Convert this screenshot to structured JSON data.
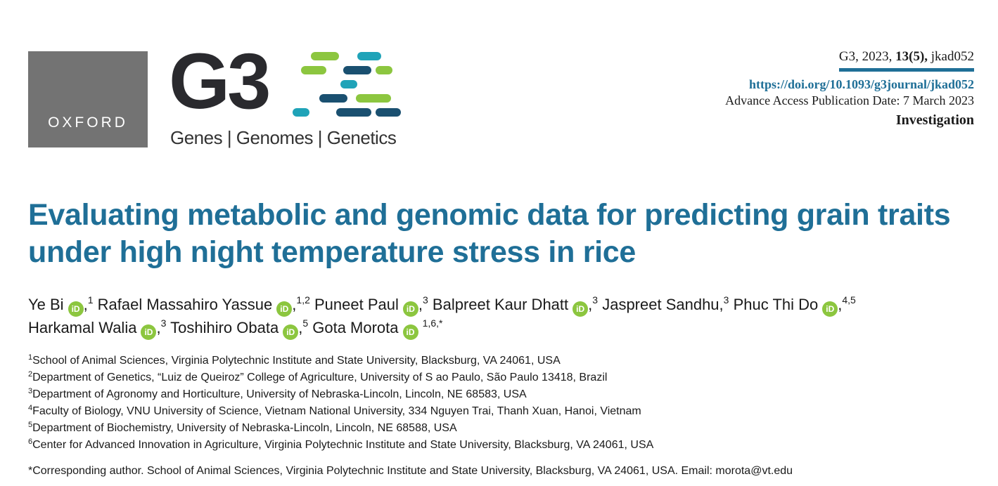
{
  "header": {
    "publisher": "OXFORD",
    "journal_mark": "G3",
    "journal_tagline": "Genes | Genomes | Genetics",
    "citation_prefix": "G3, 2023, ",
    "citation_volume": "13(5),",
    "citation_suffix": " jkad052",
    "doi": "https://doi.org/10.1093/g3journal/jkad052",
    "advance_access": "Advance Access Publication Date: 7 March 2023",
    "article_type": "Investigation"
  },
  "colors": {
    "title": "#1f6f97",
    "orcid": "#8cc63f",
    "bar_green": "#8cc63f",
    "bar_teal": "#1fa3b8",
    "bar_navy": "#1a5070",
    "oxford_box": "#737373"
  },
  "title": "Evaluating metabolic and genomic data for predicting grain traits under high night temperature stress in rice",
  "authors": [
    {
      "name": "Ye Bi",
      "orcid": true,
      "affil": "1"
    },
    {
      "name": "Rafael Massahiro Yassue",
      "orcid": true,
      "affil": "1,2"
    },
    {
      "name": "Puneet Paul",
      "orcid": true,
      "affil": "3"
    },
    {
      "name": "Balpreet Kaur Dhatt",
      "orcid": true,
      "affil": "3"
    },
    {
      "name": "Jaspreet Sandhu,",
      "orcid": false,
      "affil": "3"
    },
    {
      "name": "Phuc Thi Do",
      "orcid": true,
      "affil": "4,5"
    },
    {
      "name": "Harkamal Walia",
      "orcid": true,
      "affil": "3"
    },
    {
      "name": "Toshihiro Obata",
      "orcid": true,
      "affil": "5"
    },
    {
      "name": "Gota Morota",
      "orcid": true,
      "affil": "1,6,*"
    }
  ],
  "orcid_label": "iD",
  "affiliations": [
    {
      "num": "1",
      "text": "School of Animal Sciences, Virginia Polytechnic Institute and State University, Blacksburg, VA 24061, USA"
    },
    {
      "num": "2",
      "text": "Department of Genetics, “Luiz de Queiroz” College of Agriculture, University of S ao Paulo, São Paulo 13418, Brazil"
    },
    {
      "num": "3",
      "text": "Department of Agronomy and Horticulture, University of Nebraska-Lincoln, Lincoln, NE 68583, USA"
    },
    {
      "num": "4",
      "text": "Faculty of Biology, VNU University of Science, Vietnam National University, 334 Nguyen Trai, Thanh Xuan, Hanoi, Vietnam"
    },
    {
      "num": "5",
      "text": "Department of Biochemistry, University of Nebraska-Lincoln, Lincoln, NE 68588, USA"
    },
    {
      "num": "6",
      "text": "Center for Advanced Innovation in Agriculture, Virginia Polytechnic Institute and State University, Blacksburg, VA 24061, USA"
    }
  ],
  "corresponding": "*Corresponding author. School of Animal Sciences, Virginia Polytechnic Institute and State University, Blacksburg, VA 24061, USA. Email: morota@vt.edu"
}
